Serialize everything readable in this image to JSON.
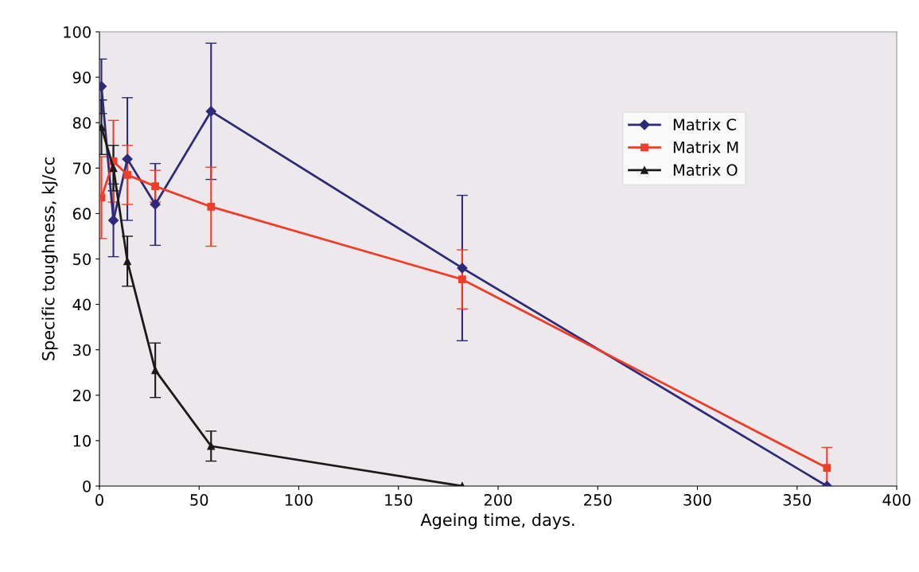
{
  "chart_data": {
    "type": "line",
    "xlabel": "Ageing time, days.",
    "ylabel": "Specific toughness, kJ/cc",
    "xlim": [
      0,
      400
    ],
    "xticks": [
      0,
      50,
      100,
      150,
      200,
      250,
      300,
      350,
      400
    ],
    "ylim": [
      0,
      100
    ],
    "yticks": [
      0,
      10,
      20,
      30,
      40,
      50,
      60,
      70,
      80,
      90,
      100
    ],
    "grid": false,
    "legend": "top right",
    "x": [
      1,
      7,
      14,
      28,
      56,
      182,
      365
    ],
    "series": [
      {
        "name": "Matrix C",
        "color": "#2e2a7a",
        "marker": "diamond",
        "values": [
          88,
          58.5,
          72,
          62,
          82.5,
          48,
          0
        ],
        "errors": [
          6,
          8,
          13.5,
          9,
          15,
          16,
          null
        ]
      },
      {
        "name": "Matrix M",
        "color": "#f03c28",
        "marker": "square",
        "values": [
          63.5,
          71.5,
          68.5,
          66,
          61.5,
          45.5,
          4
        ],
        "errors": [
          9,
          9,
          6.5,
          3.5,
          8.7,
          6.5,
          4.5
        ]
      },
      {
        "name": "Matrix O",
        "color": "#1a1a1a",
        "marker": "triangle",
        "values": [
          79,
          70,
          49.5,
          25.5,
          8.8,
          0,
          null
        ],
        "errors": [
          6,
          5,
          5.5,
          6,
          3.3,
          null,
          null
        ]
      }
    ]
  }
}
